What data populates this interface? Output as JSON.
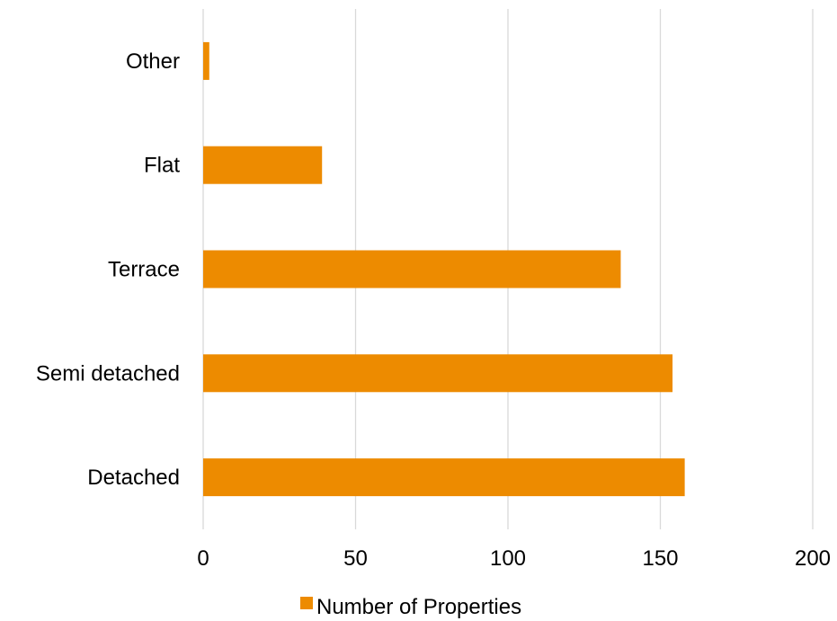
{
  "colors": {
    "bar": "#ED8B00",
    "grid": "#D9D9D9",
    "text": "#000000"
  },
  "chart_data": {
    "type": "bar",
    "orientation": "horizontal",
    "categories": [
      "Other",
      "Flat",
      "Terrace",
      "Semi detached",
      "Detached"
    ],
    "series": [
      {
        "name": "Number of Properties",
        "values": [
          2,
          39,
          137,
          154,
          158
        ]
      }
    ],
    "title": "",
    "xlabel": "",
    "ylabel": "",
    "xlim": [
      0,
      200
    ],
    "xticks": [
      0,
      50,
      100,
      150,
      200
    ],
    "grid": true,
    "legend_position": "bottom"
  }
}
